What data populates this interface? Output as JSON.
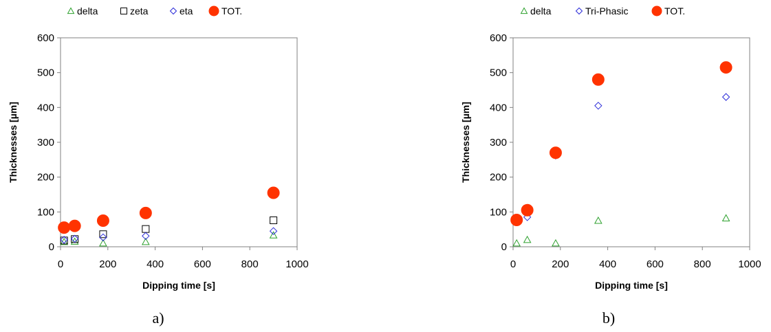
{
  "chart_data": [
    {
      "type": "scatter",
      "panel_label": "a)",
      "xlabel": "Dipping time [s]",
      "ylabel": "Thicknesses [µm]",
      "xlim": [
        0,
        1000
      ],
      "ylim": [
        0,
        600
      ],
      "xticks": [
        "0",
        "200",
        "400",
        "600",
        "800",
        "1000"
      ],
      "yticks": [
        "0",
        "100",
        "200",
        "300",
        "400",
        "500",
        "600"
      ],
      "legend_position": "top",
      "series": [
        {
          "name": "delta",
          "marker": "triangle",
          "color": "#2ca02c",
          "fill": "none",
          "x": [
            15,
            60,
            180,
            360,
            900
          ],
          "y": [
            14,
            15,
            10,
            14,
            33
          ]
        },
        {
          "name": "zeta",
          "marker": "square",
          "color": "#000000",
          "fill": "none",
          "x": [
            15,
            60,
            180,
            360,
            900
          ],
          "y": [
            18,
            22,
            36,
            51,
            76
          ]
        },
        {
          "name": "eta",
          "marker": "diamond",
          "color": "#2b2bd9",
          "fill": "none",
          "x": [
            15,
            60,
            180,
            360,
            900
          ],
          "y": [
            20,
            23,
            27,
            31,
            45
          ]
        },
        {
          "name": "TOT.",
          "marker": "circle",
          "color": "#ff3300",
          "fill": "#ff3300",
          "x": [
            15,
            60,
            180,
            360,
            900
          ],
          "y": [
            55,
            60,
            75,
            97,
            155
          ]
        }
      ]
    },
    {
      "type": "scatter",
      "panel_label": "b)",
      "xlabel": "Dipping time [s]",
      "ylabel": "Thicknesses [µm]",
      "xlim": [
        0,
        1000
      ],
      "ylim": [
        0,
        600
      ],
      "xticks": [
        "0",
        "200",
        "400",
        "600",
        "800",
        "1000"
      ],
      "yticks": [
        "0",
        "100",
        "200",
        "300",
        "400",
        "500",
        "600"
      ],
      "legend_position": "top",
      "series": [
        {
          "name": "delta",
          "marker": "triangle",
          "color": "#2ca02c",
          "fill": "none",
          "x": [
            15,
            60,
            180,
            360,
            900
          ],
          "y": [
            10,
            20,
            10,
            75,
            82
          ]
        },
        {
          "name": "Tri-Phasic",
          "marker": "diamond",
          "color": "#2b2bd9",
          "fill": "none",
          "x": [
            15,
            60,
            180,
            360,
            900
          ],
          "y": [
            78,
            85,
            262,
            405,
            430
          ]
        },
        {
          "name": "TOT.",
          "marker": "circle",
          "color": "#ff3300",
          "fill": "#ff3300",
          "x": [
            15,
            60,
            180,
            360,
            900
          ],
          "y": [
            77,
            105,
            270,
            480,
            515
          ]
        }
      ]
    }
  ]
}
